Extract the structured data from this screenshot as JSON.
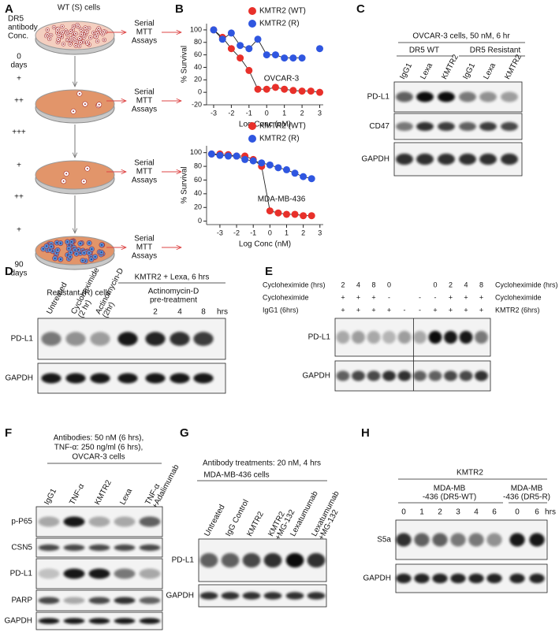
{
  "panel_labels": [
    "A",
    "B",
    "C",
    "D",
    "E",
    "F",
    "G",
    "H"
  ],
  "panel_a": {
    "top_label": "WT (S) cells",
    "conc_label": [
      "DR5",
      "antibody",
      "Conc."
    ],
    "start": [
      "0",
      "days"
    ],
    "steps": [
      "+",
      "++",
      "+++",
      "+",
      "++",
      "+"
    ],
    "end": [
      "90",
      "days"
    ],
    "assays": [
      [
        "Serial",
        "MTT",
        "Assays"
      ],
      [
        "Serial",
        "MTT",
        "Assays"
      ],
      [
        "Serial",
        "MTT",
        "Assays"
      ],
      [
        "Serial",
        "MTT",
        "Assays"
      ]
    ],
    "bottom_label": "Resistant (R) cells"
  },
  "chart_data": [
    {
      "type": "scatter",
      "annotation": "OVCAR-3",
      "xlabel": "Log Conc (nM)",
      "ylabel": "% Survival",
      "x": [
        -3,
        -2.5,
        -2,
        -1.5,
        -1,
        -0.5,
        0,
        0.5,
        1,
        1.5,
        2,
        2.5,
        3
      ],
      "series": [
        {
          "name": "KMTR2 (WT)",
          "color": "#e8302a",
          "values": [
            100,
            88,
            70,
            55,
            35,
            5,
            5,
            8,
            5,
            3,
            2,
            2,
            0
          ]
        },
        {
          "name": "KMTR2 (R)",
          "color": "#2f56e0",
          "values": [
            100,
            85,
            95,
            75,
            70,
            85,
            60,
            60,
            55,
            55,
            55,
            null,
            70
          ]
        }
      ],
      "xlim": [
        -3.4,
        3.2
      ],
      "ylim": [
        -20,
        110
      ],
      "xticks": [
        -3,
        -2,
        -1,
        0,
        1,
        2,
        3
      ],
      "yticks": [
        -20,
        0,
        20,
        40,
        60,
        80,
        100
      ]
    },
    {
      "type": "scatter",
      "annotation": "MDA-MB-436",
      "xlabel": "Log Conc (nM)",
      "ylabel": "% Survival",
      "x": [
        -3.5,
        -3,
        -2.5,
        -2,
        -1.5,
        -1,
        -0.5,
        0,
        0.5,
        1,
        1.5,
        2,
        2.5
      ],
      "series": [
        {
          "name": "KMTR2 (WT)",
          "color": "#e8302a",
          "values": [
            98,
            98,
            97,
            95,
            95,
            90,
            80,
            15,
            12,
            10,
            10,
            8,
            8
          ]
        },
        {
          "name": "KMTR2 (R)",
          "color": "#2f56e0",
          "values": [
            98,
            96,
            95,
            95,
            90,
            88,
            85,
            82,
            78,
            75,
            70,
            65,
            62
          ]
        }
      ],
      "xlim": [
        -3.8,
        3.2
      ],
      "ylim": [
        -5,
        110
      ],
      "xticks": [
        -3,
        -2,
        -1,
        0,
        1,
        2,
        3
      ],
      "yticks": [
        0,
        20,
        40,
        60,
        80,
        100
      ]
    }
  ],
  "panel_c": {
    "title": "OVCAR-3 cells, 50 nM, 6 hr",
    "groups": [
      "DR5 WT",
      "DR5 Resistant"
    ],
    "lanes": [
      [
        "IgG1"
      ],
      [
        "Lexa"
      ],
      [
        "KMTR2"
      ],
      [
        "IgG1"
      ],
      [
        "Lexa"
      ],
      [
        "KMTR2"
      ]
    ],
    "rows": [
      "PD-L1",
      "CD47",
      "GAPDH"
    ]
  },
  "panel_d": {
    "lanes": [
      [
        "Untreated"
      ],
      [
        "Cycloheximide",
        "(2 hr)"
      ],
      [
        "Actinomycin-D",
        "(2hr)"
      ]
    ],
    "group": "KMTR2 + Lexa, 6 hrs",
    "subgroup": [
      "Actinomycin-D",
      "pre-treatment"
    ],
    "times": [
      2,
      4,
      8
    ],
    "unit": "hrs",
    "rows": [
      "PD-L1",
      "GAPDH"
    ]
  },
  "panel_e": {
    "left_labels": [
      "Cycloheximide (hrs)",
      "Cycloheximide",
      "IgG1 (6hrs)"
    ],
    "right_labels": [
      "Cycloheximide (hrs)",
      "Cycloheximide",
      "KMTR2 (6hrs)"
    ],
    "conditions": [
      [
        2,
        4,
        8,
        0,
        null,
        null,
        0,
        2,
        4,
        8
      ],
      [
        "+",
        "+",
        "+",
        "-",
        null,
        "-",
        "-",
        "+",
        "+",
        "+"
      ],
      [
        "+",
        "+",
        "+",
        "+",
        "-",
        "-",
        "+",
        "+",
        "+",
        "+"
      ]
    ],
    "rows": [
      "PD-L1",
      "GAPDH"
    ]
  },
  "panel_f": {
    "header": [
      "Antibodies:  50 nM (6 hrs),",
      "TNF-α: 250 ng/ml (6 hrs),",
      "OVCAR-3 cells"
    ],
    "lanes": [
      [
        "IgG1"
      ],
      [
        "TNF-α"
      ],
      [
        "KMTR2"
      ],
      [
        "Lexa"
      ],
      [
        "TNF-α",
        "+Adalimumab"
      ]
    ],
    "rows": [
      "p-P65",
      "CSN5",
      "PD-L1",
      "PARP",
      "GAPDH"
    ]
  },
  "panel_g": {
    "header": [
      "Antibody treatments: 20 nM, 4 hrs",
      "MDA-MB-436 cells"
    ],
    "lanes": [
      [
        "Untreated"
      ],
      [
        "IgG Control"
      ],
      [
        "KMTR2"
      ],
      [
        "KMTR2",
        "+MG-132"
      ],
      [
        "Lexatumumab"
      ],
      [
        "Lexatumumab",
        "+MG-132"
      ]
    ],
    "rows": [
      "PD-L1",
      "GAPDH"
    ]
  },
  "panel_h": {
    "header": "KMTR2",
    "groups": [
      [
        "MDA-MB",
        "-436 (DR5-WT)"
      ],
      [
        "MDA-MB",
        "-436 (DR5-R)"
      ]
    ],
    "times": [
      0,
      1,
      2,
      3,
      4,
      6,
      0,
      6
    ],
    "unit": "hrs",
    "rows": [
      "S5a",
      "GAPDH"
    ]
  }
}
